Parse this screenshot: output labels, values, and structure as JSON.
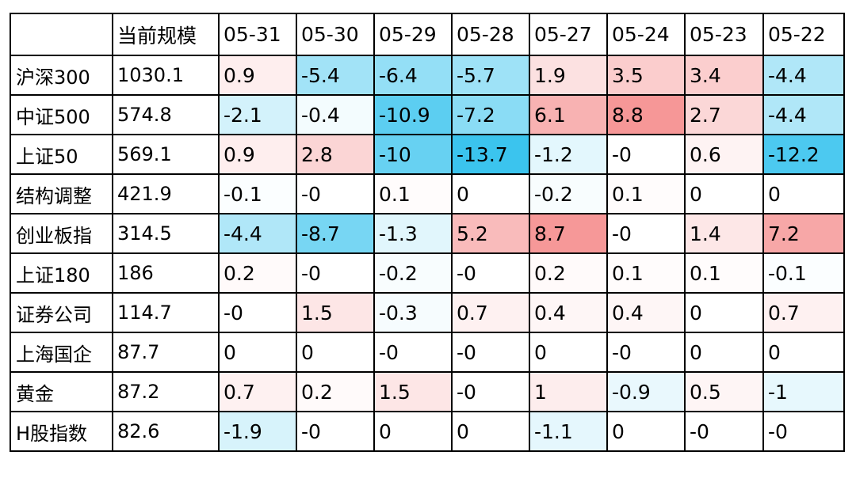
{
  "chart_data": {
    "type": "heatmap",
    "columns": [
      "",
      "当前规模",
      "05-31",
      "05-30",
      "05-29",
      "05-28",
      "05-27",
      "05-24",
      "05-23",
      "05-22"
    ],
    "rows": [
      {
        "name": "沪深300",
        "scale": "1030.1",
        "values": [
          "0.9",
          "-5.4",
          "-6.4",
          "-5.7",
          "1.9",
          "3.5",
          "3.4",
          "-4.4"
        ]
      },
      {
        "name": "中证500",
        "scale": "574.8",
        "values": [
          "-2.1",
          "-0.4",
          "-10.9",
          "-7.2",
          "6.1",
          "8.8",
          "2.7",
          "-4.4"
        ]
      },
      {
        "name": "上证50",
        "scale": "569.1",
        "values": [
          "0.9",
          "2.8",
          "-10",
          "-13.7",
          "-1.2",
          "-0",
          "0.6",
          "-12.2"
        ]
      },
      {
        "name": "结构调整",
        "scale": "421.9",
        "values": [
          "-0.1",
          "-0",
          "0.1",
          "0",
          "-0.2",
          "0.1",
          "0",
          "0"
        ]
      },
      {
        "name": "创业板指",
        "scale": "314.5",
        "values": [
          "-4.4",
          "-8.7",
          "-1.3",
          "5.2",
          "8.7",
          "-0",
          "1.4",
          "7.2"
        ]
      },
      {
        "name": "上证180",
        "scale": "186",
        "values": [
          "0.2",
          "-0",
          "-0.2",
          "-0",
          "0.2",
          "0.1",
          "0.1",
          "-0.1"
        ]
      },
      {
        "name": "证券公司",
        "scale": "114.7",
        "values": [
          "-0",
          "1.5",
          "-0.3",
          "0.7",
          "0.4",
          "0.4",
          "0",
          "0.7"
        ]
      },
      {
        "name": "上海国企",
        "scale": "87.7",
        "values": [
          "0",
          "0",
          "-0",
          "-0",
          "0",
          "-0",
          "0",
          "0"
        ]
      },
      {
        "name": "黄金",
        "scale": "87.2",
        "values": [
          "0.7",
          "0.2",
          "1.5",
          "-0",
          "1",
          "-0.9",
          "0.5",
          "-1"
        ]
      },
      {
        "name": "H股指数",
        "scale": "82.6",
        "values": [
          "-1.9",
          "-0",
          "0",
          "0",
          "-1.1",
          "0",
          "-0",
          "-0"
        ]
      }
    ],
    "color_scale": {
      "negative": "#3bc4ee",
      "zero": "#ffffff",
      "positive": "#f26b6b",
      "abs_max": 13.7
    }
  }
}
